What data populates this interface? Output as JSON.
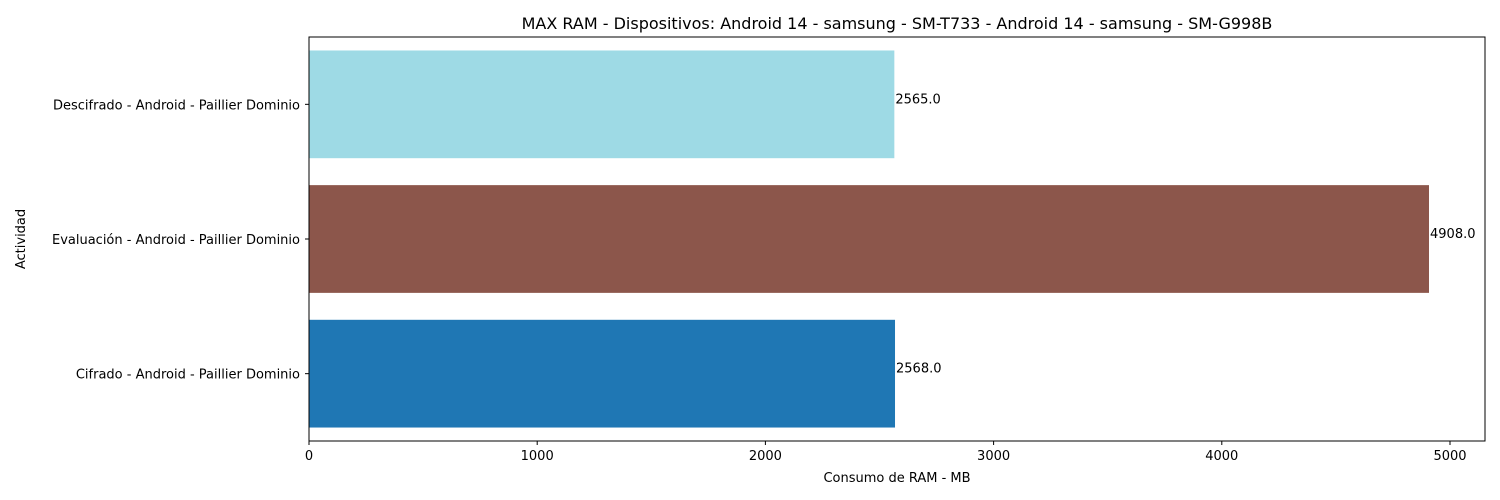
{
  "chart_data": {
    "type": "bar",
    "orientation": "horizontal",
    "title": "MAX RAM - Dispositivos: Android 14 - samsung - SM-T733 - Android 14 - samsung - SM-G998B",
    "xlabel": "Consumo de RAM - MB",
    "ylabel": "Actividad",
    "categories": [
      "Cifrado - Android - Paillier Dominio",
      "Evaluación - Android - Paillier Dominio",
      "Descifrado - Android - Paillier Dominio"
    ],
    "values": [
      2568.0,
      4908.0,
      2565.0
    ],
    "value_labels": [
      "2568.0",
      "4908.0",
      "2565.0"
    ],
    "colors": [
      "#1f77b4",
      "#8c564b",
      "#9edae5"
    ],
    "xlim": [
      0,
      5153.4
    ],
    "xticks": [
      0,
      1000,
      2000,
      3000,
      4000,
      5000
    ],
    "xtick_labels": [
      "0",
      "1000",
      "2000",
      "3000",
      "4000",
      "5000"
    ],
    "grid": false,
    "legend": "none"
  }
}
